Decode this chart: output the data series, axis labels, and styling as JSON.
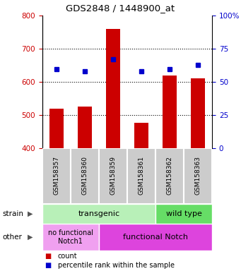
{
  "title": "GDS2848 / 1448900_at",
  "samples": [
    "GSM158357",
    "GSM158360",
    "GSM158359",
    "GSM158361",
    "GSM158362",
    "GSM158363"
  ],
  "counts": [
    520,
    527,
    760,
    478,
    620,
    612
  ],
  "percentiles": [
    60,
    58,
    67,
    58,
    60,
    63
  ],
  "ylim": [
    400,
    800
  ],
  "yticks": [
    400,
    500,
    600,
    700,
    800
  ],
  "right_ylim": [
    0,
    100
  ],
  "right_yticks": [
    0,
    25,
    50,
    75,
    100
  ],
  "right_yticklabels": [
    "0",
    "25",
    "50",
    "75",
    "100%"
  ],
  "bar_color": "#cc0000",
  "dot_color": "#0000cc",
  "tick_label_color_left": "#cc0000",
  "tick_label_color_right": "#0000cc",
  "strain_color1": "#b8f0b8",
  "strain_color2": "#66dd66",
  "other_color1": "#f0a0f0",
  "other_color2": "#dd44dd",
  "sample_box_color": "#cccccc",
  "trans_span": 4,
  "wt_span": 2,
  "nfn_span": 2,
  "fn_span": 4
}
